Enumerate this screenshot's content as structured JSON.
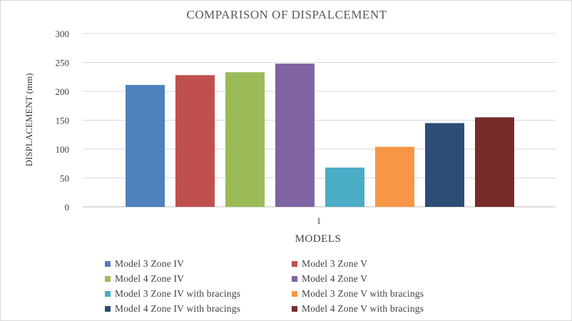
{
  "chart_data": {
    "type": "bar",
    "title": "COMPARISON OF DISPALCEMENT",
    "xlabel": "MODELS",
    "ylabel": "DISPLACEMENT (mm)",
    "categories": [
      "1"
    ],
    "ylim": [
      0,
      300
    ],
    "yticks": [
      0,
      50,
      100,
      150,
      200,
      250,
      300
    ],
    "grid": true,
    "legend_position": "bottom",
    "series": [
      {
        "name": "Model  3 Zone IV",
        "values": [
          211
        ],
        "color": "#4f81bd"
      },
      {
        "name": "Model  3 Zone V",
        "values": [
          228
        ],
        "color": "#c0504d"
      },
      {
        "name": "Model  4 Zone IV",
        "values": [
          233
        ],
        "color": "#9bbb59"
      },
      {
        "name": "Model  4 Zone V",
        "values": [
          248
        ],
        "color": "#8064a2"
      },
      {
        "name": "Model  3 Zone IV with bracings",
        "values": [
          68
        ],
        "color": "#4bacc6"
      },
      {
        "name": "Model  3 Zone V with bracings",
        "values": [
          104
        ],
        "color": "#f79646"
      },
      {
        "name": "Model  4 Zone IV with bracings",
        "values": [
          145
        ],
        "color": "#2c4d75"
      },
      {
        "name": "Model  4 Zone V with bracings",
        "values": [
          155
        ],
        "color": "#772c2a"
      }
    ]
  }
}
